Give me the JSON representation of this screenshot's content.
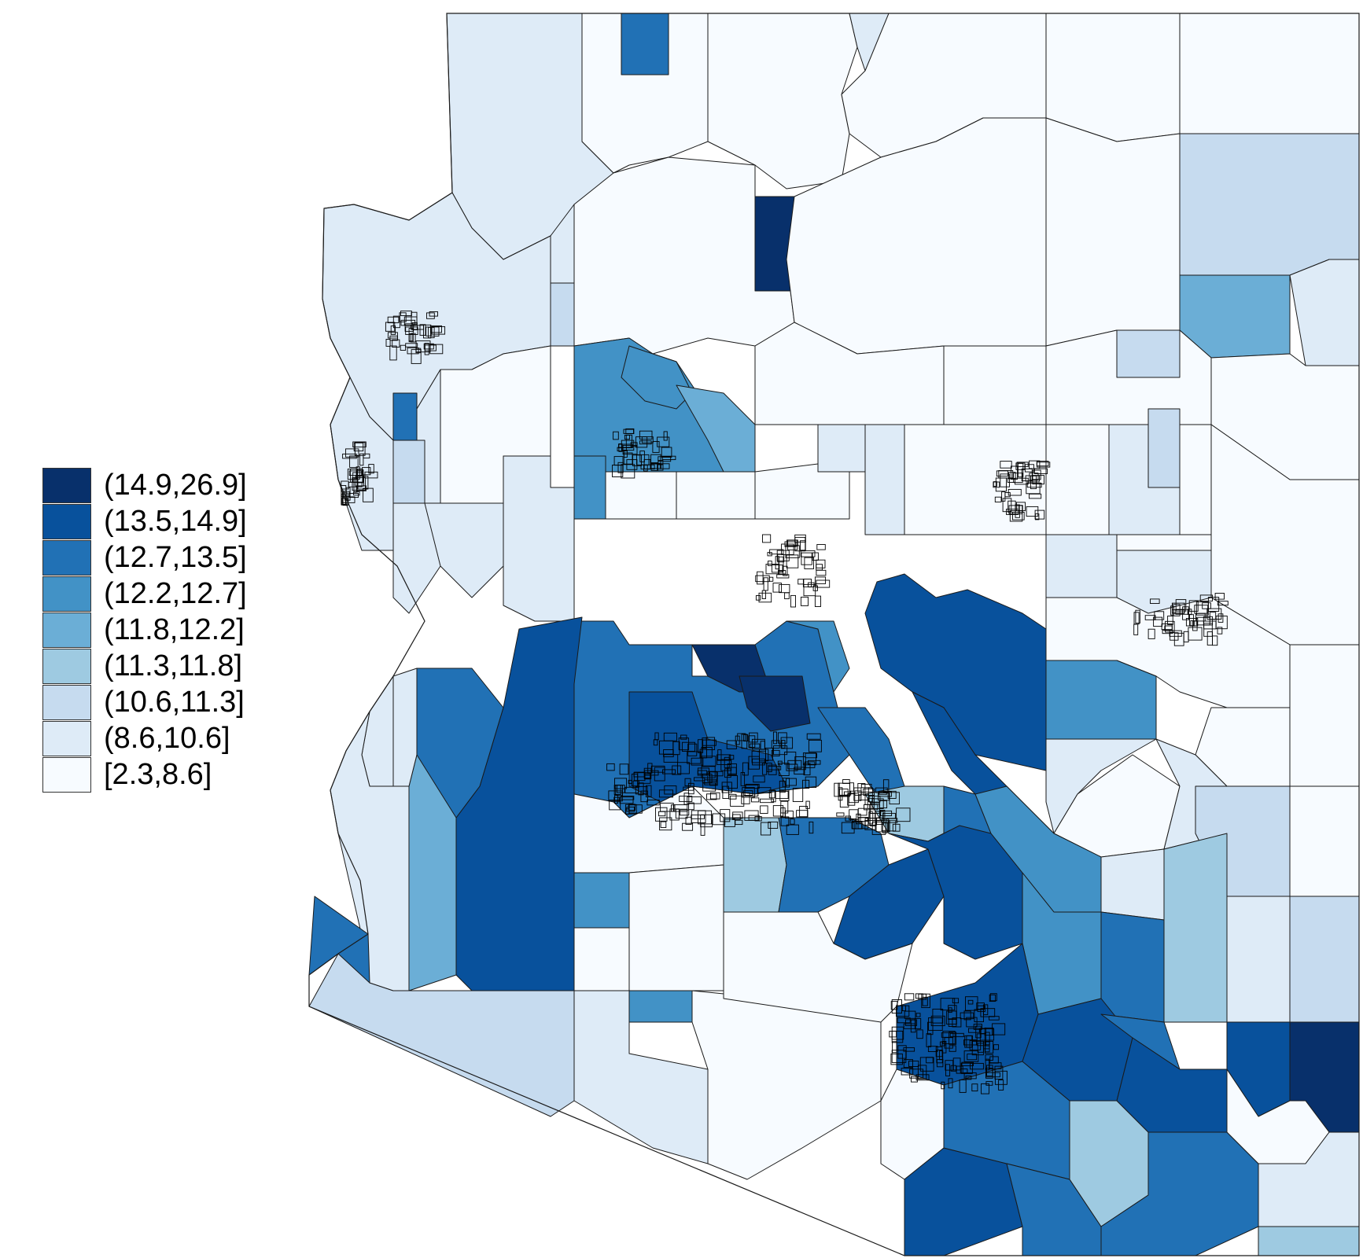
{
  "legend": {
    "classes": [
      {
        "label": "(14.9,26.9]",
        "color": "#08306b"
      },
      {
        "label": "(13.5,14.9]",
        "color": "#08519c"
      },
      {
        "label": "(12.7,13.5]",
        "color": "#2171b5"
      },
      {
        "label": "(12.2,12.7]",
        "color": "#4292c6"
      },
      {
        "label": "(11.8,12.2]",
        "color": "#6baed6"
      },
      {
        "label": "(11.3,11.8]",
        "color": "#9ecae1"
      },
      {
        "label": "(10.6,11.3]",
        "color": "#c6dbef"
      },
      {
        "label": "(8.6,10.6]",
        "color": "#deebf7"
      },
      {
        "label": "[2.3,8.6]",
        "color": "#f7fbff"
      }
    ]
  }
}
